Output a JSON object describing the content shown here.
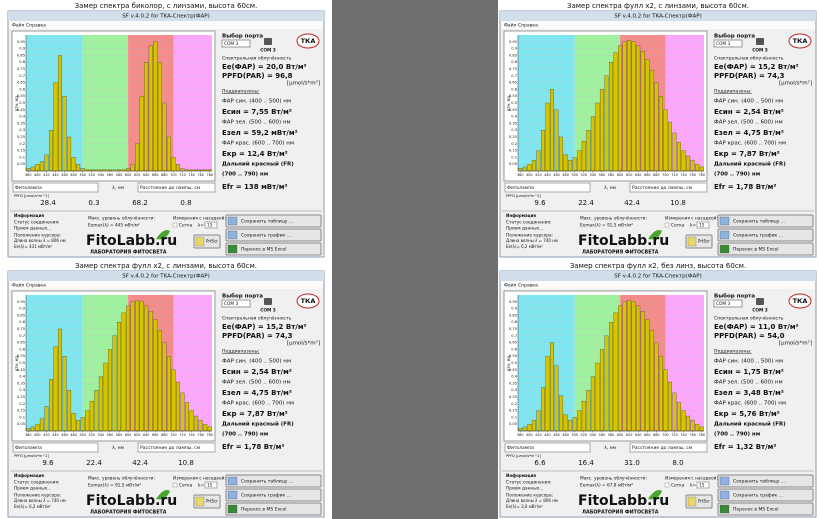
{
  "ui": {
    "window_title": "SF v.4.0.2 for TKA-Спектр(ФАР)",
    "menu": [
      "Файл",
      "Справка"
    ],
    "port_label": "Выбор порта",
    "port": "COM 3",
    "port_icon_label": "COM 3",
    "tka": "ТКА",
    "spectral": "Спектральная облучённость",
    "ppfd_unit": "[μmol/s*m²]",
    "subranges": "Поддиапазоны:",
    "blue_range": "ФАР син. (400 .. 500) нм",
    "green_range": "ФАР зел. (500 .. 600) нм",
    "red_range": "ФАР крас. (600 .. 700) нм",
    "fr_range": "Дальний красный (FR)",
    "fr_range2": "(700 .. 790) нм",
    "lamp": "Фитолампа",
    "lambda": "λ, нм",
    "distance": "Расстояние до лампы, см",
    "ppfd_row": "PPFD [μmol/s*m^2]",
    "info": "Информация",
    "status": "Статус соединения:",
    "receiving": "Прием данных...",
    "cursor": "Положение курсора:",
    "max": "Макс. уровень облучённости:",
    "attach": "Измерения с насадкой:",
    "grid_opt": "Сетка",
    "k": "k=",
    "k_value": 15,
    "logo": "FitoLabb.ru",
    "logo_sub": "ЛАБОРАТОРИЯ ФИТОСВЕТА",
    "save_table": "Сохранить таблицу ...",
    "save_chart": "Сохранить график ...",
    "excel": "Перенос в MS Excel",
    "prtscr": "PrtScr",
    "ylabel": "отн. ед.",
    "xlim": [
      375,
      785
    ],
    "ylim": [
      0,
      1
    ],
    "xticks": [
      380,
      400,
      420,
      440,
      460,
      480,
      500,
      520,
      540,
      560,
      580,
      600,
      620,
      640,
      660,
      680,
      700,
      720,
      740,
      760,
      780
    ],
    "yticks": [
      0.05,
      0.1,
      0.15,
      0.2,
      0.25,
      0.3,
      0.35,
      0.4,
      0.45,
      0.5,
      0.55,
      0.6,
      0.65,
      0.7,
      0.75,
      0.8,
      0.85,
      0.9,
      0.95
    ],
    "bands": [
      {
        "from": 375,
        "to": 500,
        "color": "#7fe6f0"
      },
      {
        "from": 500,
        "to": 600,
        "color": "#9ff09f"
      },
      {
        "from": 600,
        "to": 700,
        "color": "#f48c8c"
      },
      {
        "from": 700,
        "to": 785,
        "color": "#fca6fc"
      }
    ],
    "bar_color": "#d6c400",
    "wavelengths": [
      380,
      390,
      400,
      410,
      420,
      430,
      440,
      450,
      460,
      470,
      480,
      490,
      500,
      510,
      520,
      530,
      540,
      550,
      560,
      570,
      580,
      590,
      600,
      610,
      620,
      630,
      640,
      650,
      660,
      670,
      680,
      690,
      700,
      710,
      720,
      730,
      740,
      750,
      760,
      770,
      780
    ]
  },
  "panels": [
    {
      "caption": "Замер спектра биколор, с линзами, высота 60см.",
      "ee": "Ee(ФАР) = 20,0 Вт/м²",
      "ppfd": "PPFD(PAR) = 96,8",
      "e_blue": "Eсин = 7,55 Вт/м²",
      "e_green": "Eзел = 59,2 мВт/м²",
      "e_red": "Eкр = 12,4 Вт/м²",
      "e_fr": "Efr = 138 мВт/м²",
      "ppfd_values": [
        "28.4",
        "0.3",
        "68.2",
        "0.8"
      ],
      "cursor_wl": "Длина волны λ = 806 нм",
      "cursor_ee": "Ee(λ)= 431 мВт/м²",
      "ee_max": "Eemax(λ) = 445 мВт/м²",
      "spectrum": [
        0.02,
        0.03,
        0.05,
        0.07,
        0.12,
        0.3,
        0.65,
        0.85,
        0.55,
        0.25,
        0.1,
        0.05,
        0.02,
        0.01,
        0.01,
        0.01,
        0.01,
        0.01,
        0.01,
        0.01,
        0.01,
        0.01,
        0.02,
        0.05,
        0.2,
        0.55,
        0.8,
        0.92,
        0.95,
        0.8,
        0.5,
        0.25,
        0.1,
        0.05,
        0.02,
        0.01,
        0.01,
        0.01,
        0.01,
        0.01,
        0.01
      ]
    },
    {
      "caption": "Замер спектра фулл х2, с линзами, высота 60см.",
      "ee": "Ee(ФАР) = 15,2 Вт/м²",
      "ppfd": "PPFD(PAR) = 74,3",
      "e_blue": "Eсин = 2,54 Вт/м²",
      "e_green": "Eзел = 4,75 Вт/м²",
      "e_red": "Eкр = 7,87 Вт/м²",
      "e_fr": "Efr = 1,78 Вт/м²",
      "ppfd_values": [
        "9.6",
        "22.4",
        "42.4",
        "10.8"
      ],
      "cursor_wl": "Длина волны λ = 740 нм",
      "cursor_ee": "Ee(λ)= 6,2 мВт/м²",
      "ee_max": "Eemax(λ) = 91,5 мВт/м²",
      "spectrum": [
        0.02,
        0.03,
        0.05,
        0.08,
        0.15,
        0.3,
        0.5,
        0.6,
        0.45,
        0.25,
        0.12,
        0.08,
        0.1,
        0.15,
        0.22,
        0.3,
        0.4,
        0.5,
        0.6,
        0.7,
        0.8,
        0.87,
        0.92,
        0.95,
        0.96,
        0.95,
        0.92,
        0.88,
        0.82,
        0.74,
        0.65,
        0.55,
        0.45,
        0.36,
        0.28,
        0.21,
        0.15,
        0.11,
        0.08,
        0.05,
        0.03
      ]
    },
    {
      "caption": "Замер спектра фулл х2, с линзами, высота 60см.",
      "ee": "Ee(ФАР) = 15,2 Вт/м²",
      "ppfd": "PPFD(PAR) = 74,3",
      "e_blue": "Eсин = 2,54 Вт/м²",
      "e_green": "Eзел = 4,75 Вт/м²",
      "e_red": "Eкр = 7,87 Вт/м²",
      "e_fr": "Efr = 1,78 Вт/м²",
      "ppfd_values": [
        "9.6",
        "22.4",
        "42.4",
        "10.8"
      ],
      "cursor_wl": "Длина волны λ = 740 нм",
      "cursor_ee": "Ee(λ)= 6,2 мВт/м²",
      "ee_max": "Eemax(λ) = 91,5 мВт/м²",
      "spectrum": [
        0.02,
        0.03,
        0.05,
        0.09,
        0.18,
        0.38,
        0.62,
        0.75,
        0.55,
        0.3,
        0.13,
        0.08,
        0.1,
        0.15,
        0.22,
        0.3,
        0.4,
        0.5,
        0.6,
        0.7,
        0.8,
        0.87,
        0.92,
        0.95,
        0.96,
        0.95,
        0.92,
        0.88,
        0.82,
        0.74,
        0.65,
        0.55,
        0.45,
        0.36,
        0.28,
        0.21,
        0.15,
        0.11,
        0.08,
        0.05,
        0.03
      ]
    },
    {
      "caption": "Замер спектра фулл х2, без линз, высота 60см.",
      "ee": "Ee(ФАР) = 11,0 Вт/м²",
      "ppfd": "PPFD(PAR) = 54,0",
      "e_blue": "Eсин = 1,75 Вт/м²",
      "e_green": "Eзел = 3,48 Вт/м²",
      "e_red": "Eкр = 5,76 Вт/м²",
      "e_fr": "Efr = 1,32 Вт/м²",
      "ppfd_values": [
        "6.6",
        "16.4",
        "31.0",
        "8.0"
      ],
      "cursor_wl": "Длина волны λ = 806 нм",
      "cursor_ee": "Ee(λ)= 3,0 мВт/м²",
      "ee_max": "Eemax(λ) = 67,8 мВт/м²",
      "spectrum": [
        0.02,
        0.03,
        0.05,
        0.08,
        0.15,
        0.32,
        0.55,
        0.65,
        0.48,
        0.26,
        0.12,
        0.08,
        0.1,
        0.15,
        0.22,
        0.3,
        0.4,
        0.5,
        0.6,
        0.7,
        0.8,
        0.87,
        0.92,
        0.95,
        0.96,
        0.95,
        0.92,
        0.88,
        0.82,
        0.74,
        0.65,
        0.55,
        0.45,
        0.36,
        0.28,
        0.21,
        0.15,
        0.11,
        0.08,
        0.05,
        0.03
      ]
    }
  ]
}
